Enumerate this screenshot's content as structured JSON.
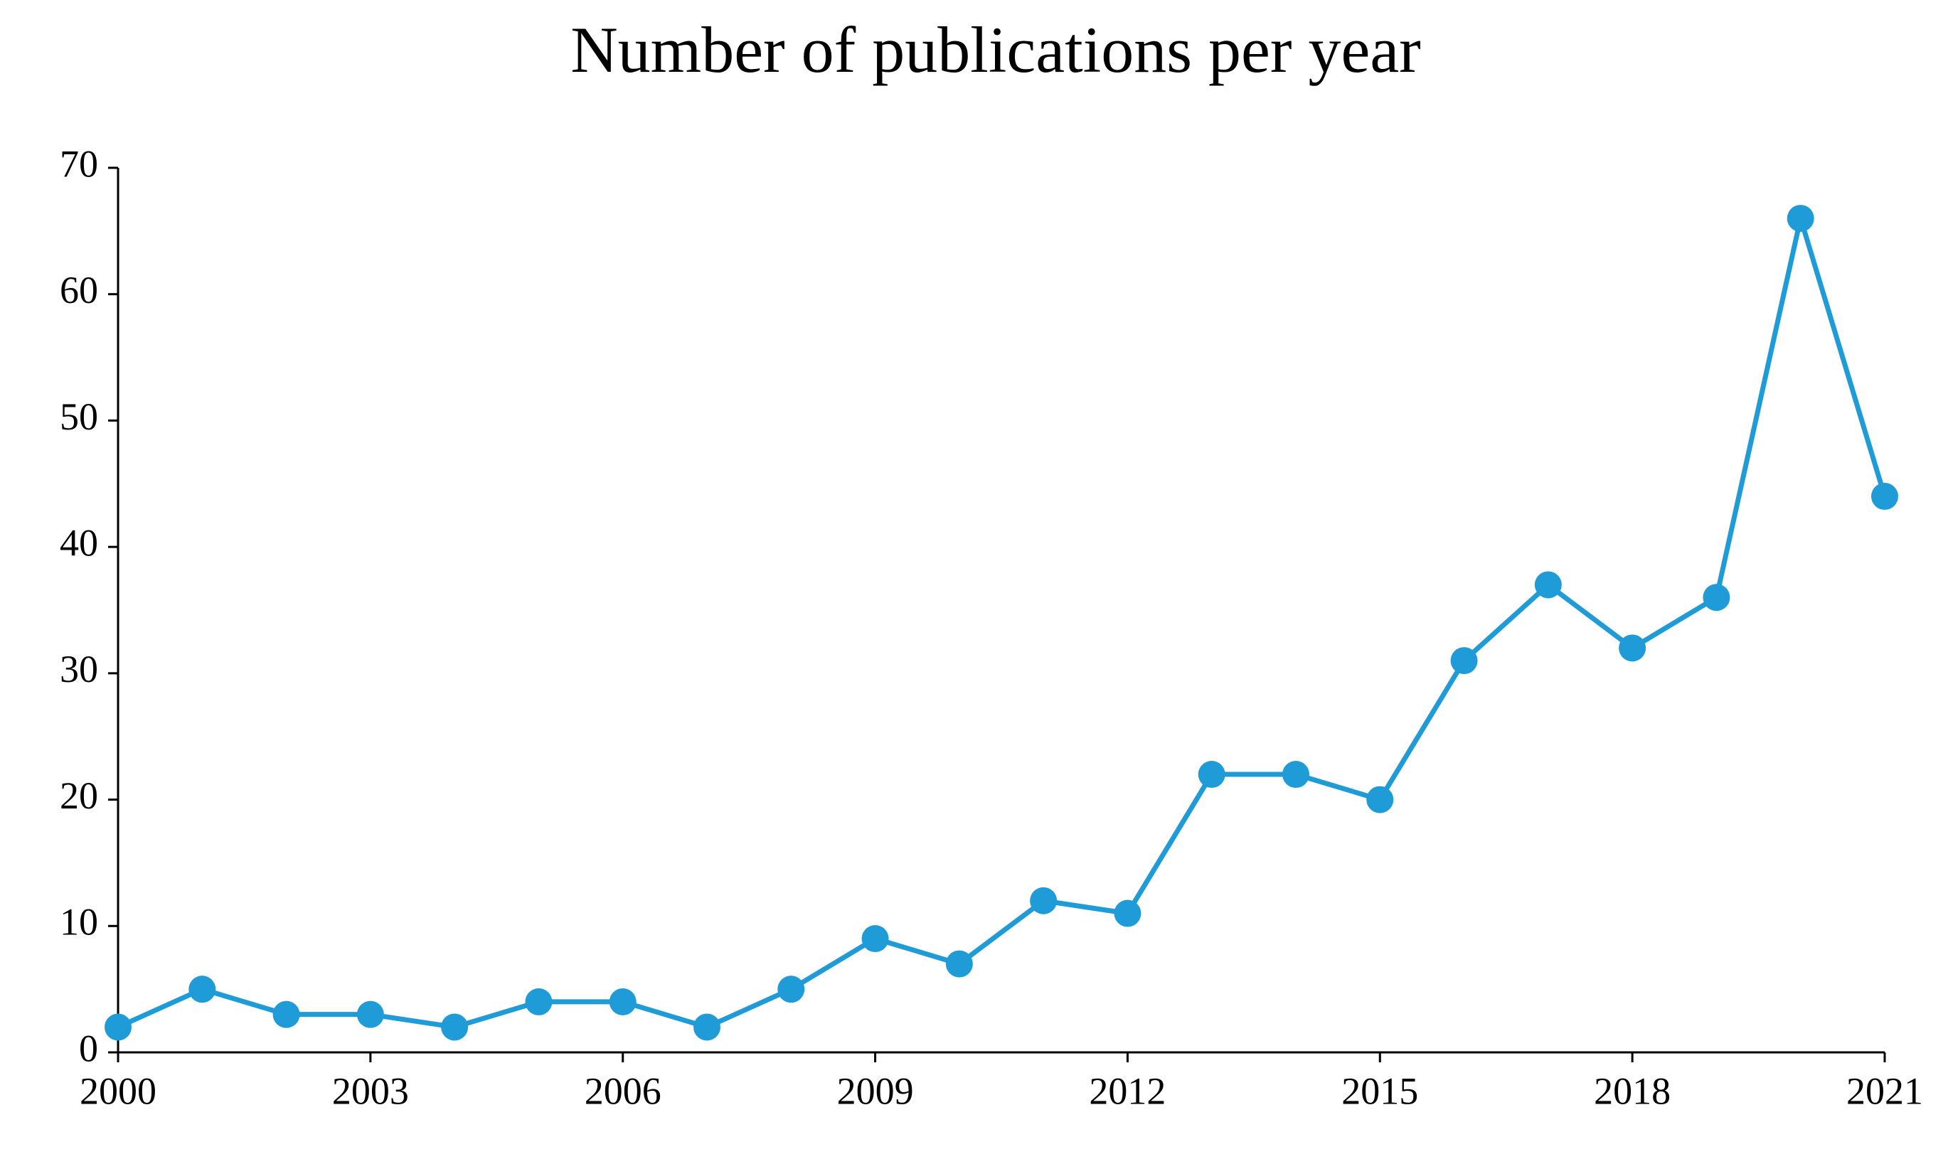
{
  "chart_data": {
    "type": "line",
    "title": "Number of publications per year",
    "x": [
      2000,
      2001,
      2002,
      2003,
      2004,
      2005,
      2006,
      2007,
      2008,
      2009,
      2010,
      2011,
      2012,
      2013,
      2014,
      2015,
      2016,
      2017,
      2018,
      2019,
      2020,
      2021
    ],
    "series": [
      {
        "name": "Publications",
        "color": "#1f9bd7",
        "values": [
          2,
          5,
          3,
          3,
          2,
          4,
          4,
          2,
          5,
          9,
          7,
          12,
          11,
          22,
          22,
          20,
          31,
          37,
          32,
          36,
          66,
          44
        ]
      }
    ],
    "xlim": [
      2000,
      2021
    ],
    "xticks": [
      2000,
      2003,
      2006,
      2009,
      2012,
      2015,
      2018,
      2021
    ],
    "ylim": [
      0,
      70
    ],
    "yticks": [
      0,
      10,
      20,
      30,
      40,
      50,
      60,
      70
    ],
    "grid": false,
    "markers": true
  }
}
